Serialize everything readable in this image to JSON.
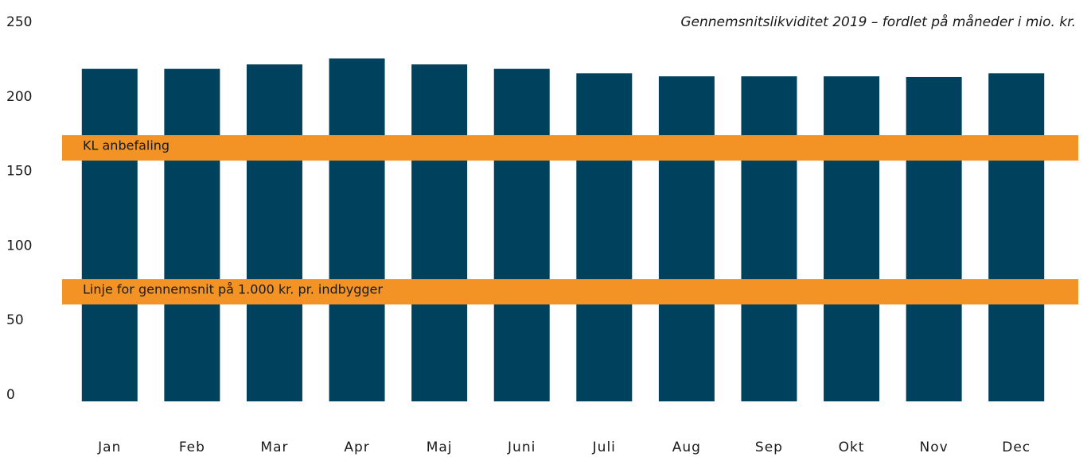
{
  "chart_data": {
    "type": "bar",
    "title": "Gennemsnitslikviditet 2019 – fordlet på måneder i mio. kr.",
    "categories": [
      "Jan",
      "Feb",
      "Mar",
      "Apr",
      "Maj",
      "Juni",
      "Juli",
      "Aug",
      "Sep",
      "Okt",
      "Nov",
      "Dec"
    ],
    "values": [
      223,
      223,
      226,
      230,
      226,
      223,
      220,
      218,
      218,
      218,
      217.5,
      220
    ],
    "color": "#00415e",
    "ylim": [
      0,
      250
    ],
    "yticks": [
      0,
      50,
      100,
      150,
      200,
      250
    ],
    "grid": false,
    "reference_lines": [
      {
        "label": "KL anbefaling",
        "value": 170,
        "color": "#f39325"
      },
      {
        "label": "Linje for gennemsnit på 1.000 kr. pr. indbygger",
        "value": 73.5,
        "color": "#f39325"
      }
    ]
  }
}
